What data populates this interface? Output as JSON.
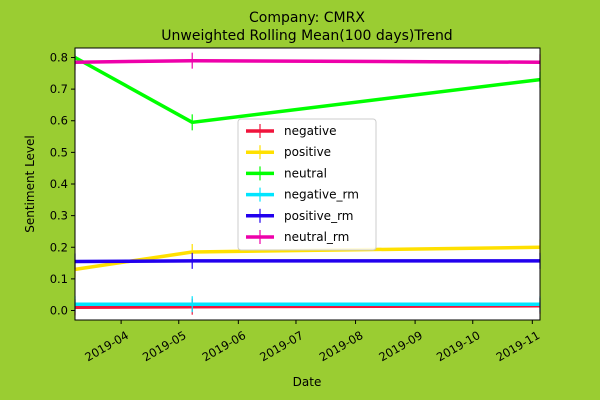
{
  "chart_data": {
    "type": "line",
    "title_line1": "Company: CMRX",
    "title_line2": "Unweighted Rolling Mean(100 days)Trend",
    "xlabel": "Date",
    "ylabel": "Sentiment Level",
    "ylim": [
      -0.03,
      0.83
    ],
    "yticks": [
      "0.0",
      "0.1",
      "0.2",
      "0.3",
      "0.4",
      "0.5",
      "0.6",
      "0.7",
      "0.8"
    ],
    "xlim": [
      "2019-03-08",
      "2019-11-05"
    ],
    "xticks": [
      "2019-04",
      "2019-05",
      "2019-06",
      "2019-07",
      "2019-08",
      "2019-09",
      "2019-10",
      "2019-11"
    ],
    "x": [
      "2019-03-08",
      "2019-05-08",
      "2019-11-05"
    ],
    "legend_position": "center",
    "background_color": "#9ACD32",
    "plot_background_color": "#FFFFFF",
    "series": [
      {
        "name": "negative",
        "color": "#F0143C",
        "values": [
          0.01,
          0.012,
          0.015
        ]
      },
      {
        "name": "positive",
        "color": "#FFE000",
        "values": [
          0.13,
          0.185,
          0.2
        ]
      },
      {
        "name": "neutral",
        "color": "#00FF00",
        "values": [
          0.8,
          0.595,
          0.73
        ]
      },
      {
        "name": "negative_rm",
        "color": "#00E5FF",
        "values": [
          0.02,
          0.02,
          0.02
        ]
      },
      {
        "name": "positive_rm",
        "color": "#2200EE",
        "values": [
          0.155,
          0.157,
          0.157
        ]
      },
      {
        "name": "neutral_rm",
        "color": "#EE00AA",
        "values": [
          0.785,
          0.79,
          0.785
        ]
      }
    ]
  }
}
